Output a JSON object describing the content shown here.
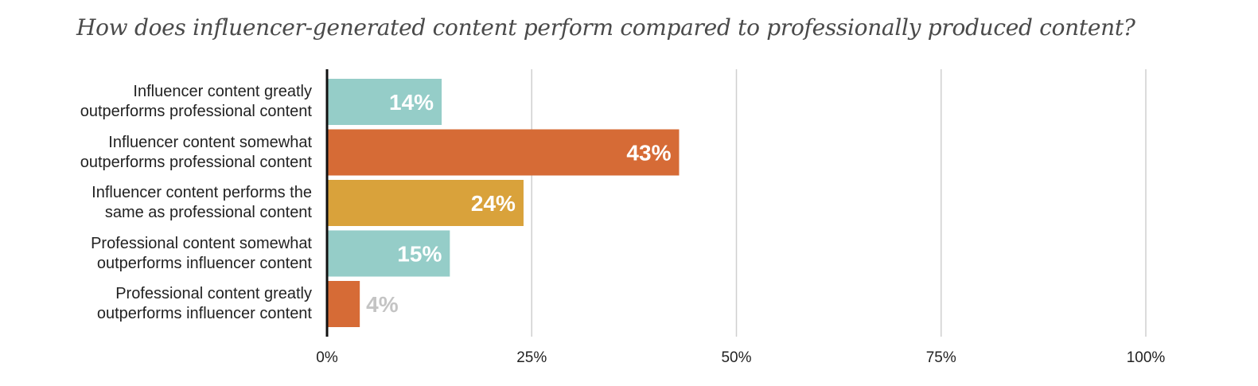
{
  "chart_data": {
    "type": "bar",
    "orientation": "horizontal",
    "title": "How does influencer-generated content perform compared to professionally produced content?",
    "categories": [
      [
        "Influencer content greatly",
        "outperforms professional content"
      ],
      [
        "Influencer content somewhat",
        "outperforms professional content"
      ],
      [
        "Influencer content performs the",
        "same as professional content"
      ],
      [
        "Professional content somewhat",
        "outperforms influencer content"
      ],
      [
        "Professional content greatly",
        "outperforms influencer content"
      ]
    ],
    "values": [
      14,
      43,
      24,
      15,
      4
    ],
    "data_labels": [
      "14%",
      "43%",
      "24%",
      "15%",
      "4%"
    ],
    "bar_colors": [
      "#95cdc8",
      "#d66b36",
      "#d9a23b",
      "#95cdc8",
      "#d66b36"
    ],
    "xlim": [
      0,
      100
    ],
    "xticks": [
      0,
      25,
      50,
      75,
      100
    ],
    "xtick_labels": [
      "0%",
      "25%",
      "50%",
      "75%",
      "100%"
    ],
    "grid": true,
    "legend": "none"
  }
}
